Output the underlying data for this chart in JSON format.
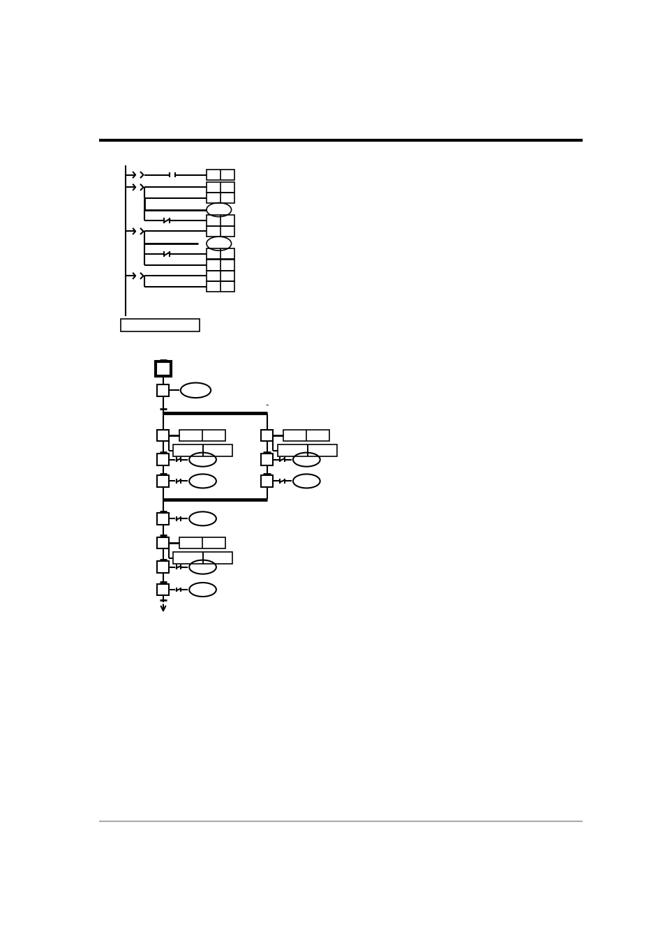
{
  "bg_color": "#ffffff",
  "line_color": "#000000"
}
